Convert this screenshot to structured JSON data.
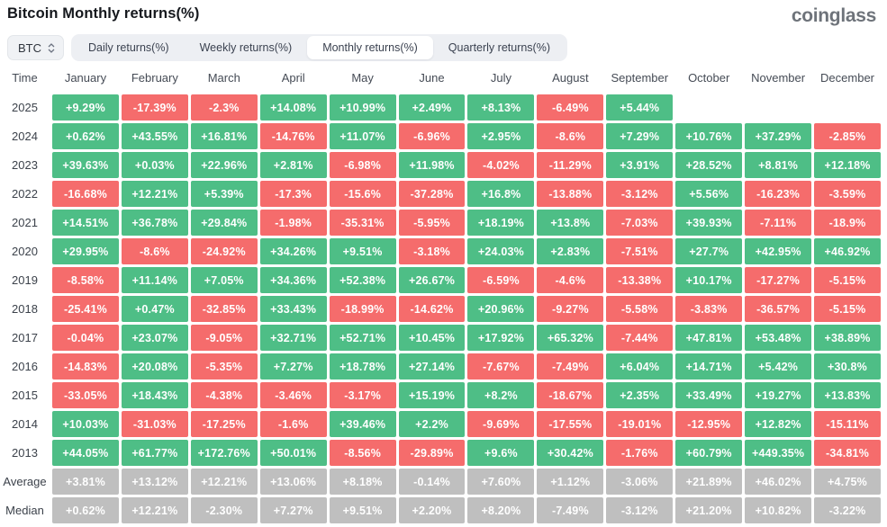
{
  "header": {
    "title": "Bitcoin Monthly returns(%)",
    "logo": "coinglass"
  },
  "controls": {
    "symbol_select": {
      "value": "BTC"
    },
    "tabs": [
      {
        "label": "Daily returns(%)",
        "active": false
      },
      {
        "label": "Weekly returns(%)",
        "active": false
      },
      {
        "label": "Monthly returns(%)",
        "active": true
      },
      {
        "label": "Quarterly returns(%)",
        "active": false
      }
    ]
  },
  "colors": {
    "positive": "#4ebe86",
    "negative": "#f56c6c",
    "neutral": "#bfbfbf"
  },
  "chart_data": {
    "type": "heatmap",
    "title": "Bitcoin Monthly returns(%)",
    "row_label_header": "Time",
    "columns": [
      "January",
      "February",
      "March",
      "April",
      "May",
      "June",
      "July",
      "August",
      "September",
      "October",
      "November",
      "December"
    ],
    "rows": [
      {
        "label": "2025",
        "cells": [
          [
            "+9.29%",
            "pos"
          ],
          [
            "-17.39%",
            "neg"
          ],
          [
            "-2.3%",
            "neg"
          ],
          [
            "+14.08%",
            "pos"
          ],
          [
            "+10.99%",
            "pos"
          ],
          [
            "+2.49%",
            "pos"
          ],
          [
            "+8.13%",
            "pos"
          ],
          [
            "-6.49%",
            "neg"
          ],
          [
            "+5.44%",
            "pos"
          ],
          null,
          null,
          null
        ]
      },
      {
        "label": "2024",
        "cells": [
          [
            "+0.62%",
            "pos"
          ],
          [
            "+43.55%",
            "pos"
          ],
          [
            "+16.81%",
            "pos"
          ],
          [
            "-14.76%",
            "neg"
          ],
          [
            "+11.07%",
            "pos"
          ],
          [
            "-6.96%",
            "neg"
          ],
          [
            "+2.95%",
            "pos"
          ],
          [
            "-8.6%",
            "neg"
          ],
          [
            "+7.29%",
            "pos"
          ],
          [
            "+10.76%",
            "pos"
          ],
          [
            "+37.29%",
            "pos"
          ],
          [
            "-2.85%",
            "neg"
          ]
        ]
      },
      {
        "label": "2023",
        "cells": [
          [
            "+39.63%",
            "pos"
          ],
          [
            "+0.03%",
            "pos"
          ],
          [
            "+22.96%",
            "pos"
          ],
          [
            "+2.81%",
            "pos"
          ],
          [
            "-6.98%",
            "neg"
          ],
          [
            "+11.98%",
            "pos"
          ],
          [
            "-4.02%",
            "neg"
          ],
          [
            "-11.29%",
            "neg"
          ],
          [
            "+3.91%",
            "pos"
          ],
          [
            "+28.52%",
            "pos"
          ],
          [
            "+8.81%",
            "pos"
          ],
          [
            "+12.18%",
            "pos"
          ]
        ]
      },
      {
        "label": "2022",
        "cells": [
          [
            "-16.68%",
            "neg"
          ],
          [
            "+12.21%",
            "pos"
          ],
          [
            "+5.39%",
            "pos"
          ],
          [
            "-17.3%",
            "neg"
          ],
          [
            "-15.6%",
            "neg"
          ],
          [
            "-37.28%",
            "neg"
          ],
          [
            "+16.8%",
            "pos"
          ],
          [
            "-13.88%",
            "neg"
          ],
          [
            "-3.12%",
            "neg"
          ],
          [
            "+5.56%",
            "pos"
          ],
          [
            "-16.23%",
            "neg"
          ],
          [
            "-3.59%",
            "neg"
          ]
        ]
      },
      {
        "label": "2021",
        "cells": [
          [
            "+14.51%",
            "pos"
          ],
          [
            "+36.78%",
            "pos"
          ],
          [
            "+29.84%",
            "pos"
          ],
          [
            "-1.98%",
            "neg"
          ],
          [
            "-35.31%",
            "neg"
          ],
          [
            "-5.95%",
            "neg"
          ],
          [
            "+18.19%",
            "pos"
          ],
          [
            "+13.8%",
            "pos"
          ],
          [
            "-7.03%",
            "neg"
          ],
          [
            "+39.93%",
            "pos"
          ],
          [
            "-7.11%",
            "neg"
          ],
          [
            "-18.9%",
            "neg"
          ]
        ]
      },
      {
        "label": "2020",
        "cells": [
          [
            "+29.95%",
            "pos"
          ],
          [
            "-8.6%",
            "neg"
          ],
          [
            "-24.92%",
            "neg"
          ],
          [
            "+34.26%",
            "pos"
          ],
          [
            "+9.51%",
            "pos"
          ],
          [
            "-3.18%",
            "neg"
          ],
          [
            "+24.03%",
            "pos"
          ],
          [
            "+2.83%",
            "pos"
          ],
          [
            "-7.51%",
            "neg"
          ],
          [
            "+27.7%",
            "pos"
          ],
          [
            "+42.95%",
            "pos"
          ],
          [
            "+46.92%",
            "pos"
          ]
        ]
      },
      {
        "label": "2019",
        "cells": [
          [
            "-8.58%",
            "neg"
          ],
          [
            "+11.14%",
            "pos"
          ],
          [
            "+7.05%",
            "pos"
          ],
          [
            "+34.36%",
            "pos"
          ],
          [
            "+52.38%",
            "pos"
          ],
          [
            "+26.67%",
            "pos"
          ],
          [
            "-6.59%",
            "neg"
          ],
          [
            "-4.6%",
            "neg"
          ],
          [
            "-13.38%",
            "neg"
          ],
          [
            "+10.17%",
            "pos"
          ],
          [
            "-17.27%",
            "neg"
          ],
          [
            "-5.15%",
            "neg"
          ]
        ]
      },
      {
        "label": "2018",
        "cells": [
          [
            "-25.41%",
            "neg"
          ],
          [
            "+0.47%",
            "pos"
          ],
          [
            "-32.85%",
            "neg"
          ],
          [
            "+33.43%",
            "pos"
          ],
          [
            "-18.99%",
            "neg"
          ],
          [
            "-14.62%",
            "neg"
          ],
          [
            "+20.96%",
            "pos"
          ],
          [
            "-9.27%",
            "neg"
          ],
          [
            "-5.58%",
            "neg"
          ],
          [
            "-3.83%",
            "neg"
          ],
          [
            "-36.57%",
            "neg"
          ],
          [
            "-5.15%",
            "neg"
          ]
        ]
      },
      {
        "label": "2017",
        "cells": [
          [
            "-0.04%",
            "neg"
          ],
          [
            "+23.07%",
            "pos"
          ],
          [
            "-9.05%",
            "neg"
          ],
          [
            "+32.71%",
            "pos"
          ],
          [
            "+52.71%",
            "pos"
          ],
          [
            "+10.45%",
            "pos"
          ],
          [
            "+17.92%",
            "pos"
          ],
          [
            "+65.32%",
            "pos"
          ],
          [
            "-7.44%",
            "neg"
          ],
          [
            "+47.81%",
            "pos"
          ],
          [
            "+53.48%",
            "pos"
          ],
          [
            "+38.89%",
            "pos"
          ]
        ]
      },
      {
        "label": "2016",
        "cells": [
          [
            "-14.83%",
            "neg"
          ],
          [
            "+20.08%",
            "pos"
          ],
          [
            "-5.35%",
            "neg"
          ],
          [
            "+7.27%",
            "pos"
          ],
          [
            "+18.78%",
            "pos"
          ],
          [
            "+27.14%",
            "pos"
          ],
          [
            "-7.67%",
            "neg"
          ],
          [
            "-7.49%",
            "neg"
          ],
          [
            "+6.04%",
            "pos"
          ],
          [
            "+14.71%",
            "pos"
          ],
          [
            "+5.42%",
            "pos"
          ],
          [
            "+30.8%",
            "pos"
          ]
        ]
      },
      {
        "label": "2015",
        "cells": [
          [
            "-33.05%",
            "neg"
          ],
          [
            "+18.43%",
            "pos"
          ],
          [
            "-4.38%",
            "neg"
          ],
          [
            "-3.46%",
            "neg"
          ],
          [
            "-3.17%",
            "neg"
          ],
          [
            "+15.19%",
            "pos"
          ],
          [
            "+8.2%",
            "pos"
          ],
          [
            "-18.67%",
            "neg"
          ],
          [
            "+2.35%",
            "pos"
          ],
          [
            "+33.49%",
            "pos"
          ],
          [
            "+19.27%",
            "pos"
          ],
          [
            "+13.83%",
            "pos"
          ]
        ]
      },
      {
        "label": "2014",
        "cells": [
          [
            "+10.03%",
            "pos"
          ],
          [
            "-31.03%",
            "neg"
          ],
          [
            "-17.25%",
            "neg"
          ],
          [
            "-1.6%",
            "neg"
          ],
          [
            "+39.46%",
            "pos"
          ],
          [
            "+2.2%",
            "pos"
          ],
          [
            "-9.69%",
            "neg"
          ],
          [
            "-17.55%",
            "neg"
          ],
          [
            "-19.01%",
            "neg"
          ],
          [
            "-12.95%",
            "neg"
          ],
          [
            "+12.82%",
            "pos"
          ],
          [
            "-15.11%",
            "neg"
          ]
        ]
      },
      {
        "label": "2013",
        "cells": [
          [
            "+44.05%",
            "pos"
          ],
          [
            "+61.77%",
            "pos"
          ],
          [
            "+172.76%",
            "pos"
          ],
          [
            "+50.01%",
            "pos"
          ],
          [
            "-8.56%",
            "neg"
          ],
          [
            "-29.89%",
            "neg"
          ],
          [
            "+9.6%",
            "pos"
          ],
          [
            "+30.42%",
            "pos"
          ],
          [
            "-1.76%",
            "neg"
          ],
          [
            "+60.79%",
            "pos"
          ],
          [
            "+449.35%",
            "pos"
          ],
          [
            "-34.81%",
            "neg"
          ]
        ]
      },
      {
        "label": "Average",
        "cells": [
          [
            "+3.81%",
            "avg"
          ],
          [
            "+13.12%",
            "avg"
          ],
          [
            "+12.21%",
            "avg"
          ],
          [
            "+13.06%",
            "avg"
          ],
          [
            "+8.18%",
            "avg"
          ],
          [
            "-0.14%",
            "avg"
          ],
          [
            "+7.60%",
            "avg"
          ],
          [
            "+1.12%",
            "avg"
          ],
          [
            "-3.06%",
            "avg"
          ],
          [
            "+21.89%",
            "avg"
          ],
          [
            "+46.02%",
            "avg"
          ],
          [
            "+4.75%",
            "avg"
          ]
        ]
      },
      {
        "label": "Median",
        "cells": [
          [
            "+0.62%",
            "avg"
          ],
          [
            "+12.21%",
            "avg"
          ],
          [
            "-2.30%",
            "avg"
          ],
          [
            "+7.27%",
            "avg"
          ],
          [
            "+9.51%",
            "avg"
          ],
          [
            "+2.20%",
            "avg"
          ],
          [
            "+8.20%",
            "avg"
          ],
          [
            "-7.49%",
            "avg"
          ],
          [
            "-3.12%",
            "avg"
          ],
          [
            "+21.20%",
            "avg"
          ],
          [
            "+10.82%",
            "avg"
          ],
          [
            "-3.22%",
            "avg"
          ]
        ]
      }
    ]
  }
}
